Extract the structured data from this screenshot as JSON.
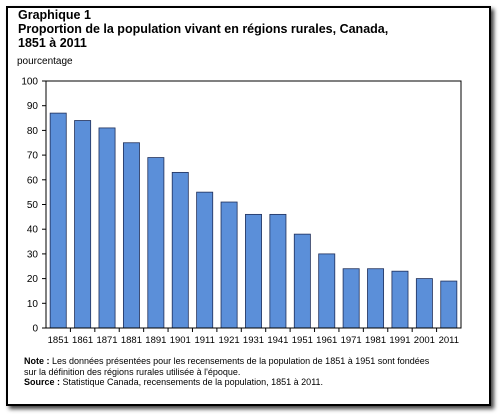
{
  "header": {
    "title_line1": "Graphique 1",
    "title_line2": "Proportion de la population vivant en régions rurales, Canada,",
    "title_line3": "1851 à 2011",
    "unit_label": "pourcentage"
  },
  "colors": {
    "bar_fill": "#5b8fd9",
    "bar_stroke": "#1f2f5a",
    "axis": "#000000"
  },
  "chart_data": {
    "type": "bar",
    "title": "Proportion de la population vivant en régions rurales, Canada, 1851 à 2011",
    "ylabel": "pourcentage",
    "xlabel": "",
    "ylim": [
      0,
      100
    ],
    "yticks": [
      0,
      10,
      20,
      30,
      40,
      50,
      60,
      70,
      80,
      90,
      100
    ],
    "categories": [
      "1851",
      "1861",
      "1871",
      "1881",
      "1891",
      "1901",
      "1911",
      "1921",
      "1931",
      "1941",
      "1951",
      "1961",
      "1971",
      "1981",
      "1991",
      "2001",
      "2011"
    ],
    "values": [
      87,
      84,
      81,
      75,
      69,
      63,
      55,
      51,
      46,
      46,
      38,
      30,
      24,
      24,
      23,
      20,
      19
    ],
    "grid": false,
    "legend": "none"
  },
  "footer": {
    "note_label": "Note :",
    "note_text": " Les données présentées pour les recensements de la population de 1851 à 1951 sont fondées sur la définition des régions rurales utilisée à l'époque.",
    "source_label": "Source :",
    "source_text": " Statistique Canada, recensements de la population, 1851 à 2011."
  }
}
